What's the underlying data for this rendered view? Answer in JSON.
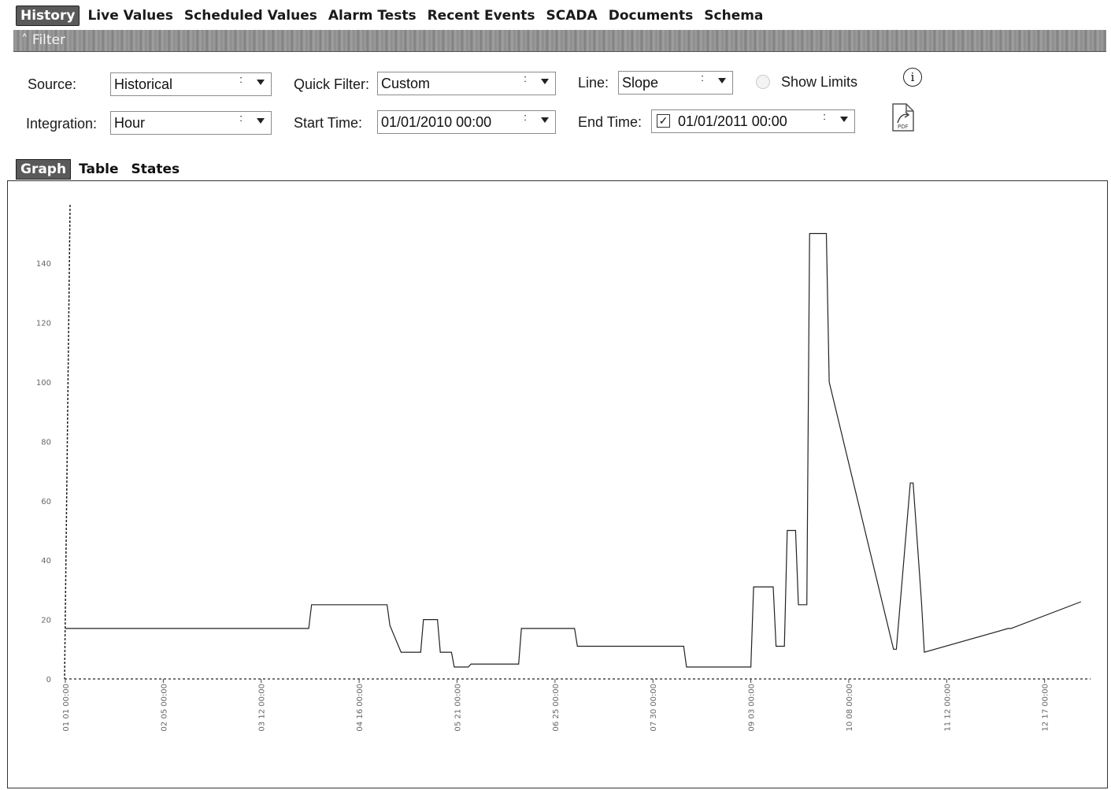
{
  "tabs": [
    "History",
    "Live Values",
    "Scheduled Values",
    "Alarm Tests",
    "Recent Events",
    "SCADA",
    "Documents",
    "Schema"
  ],
  "filter_bar": {
    "title": "Filter",
    "toggle_glyph": "≈"
  },
  "form": {
    "source_label": "Source:",
    "source_value": "Historical",
    "quick_filter_label": "Quick Filter:",
    "quick_filter_value": "Custom",
    "line_label": "Line:",
    "line_value": "Slope",
    "show_limits_label": "Show Limits",
    "integration_label": "Integration:",
    "integration_value": "Hour",
    "start_time_label": "Start Time:",
    "start_time_value": "01/01/2010 00:00",
    "end_time_label": "End Time:",
    "end_time_value": "01/01/2011 00:00",
    "end_time_checked": "✓",
    "info_glyph": "i"
  },
  "icons": {
    "info": "info-icon",
    "export": "export-icon",
    "spinner": "spinner-icon",
    "dropdown": "chevron-down-icon"
  },
  "subtabs": [
    "Graph",
    "Table",
    "States"
  ],
  "chart_data": {
    "type": "line",
    "step": true,
    "ylim": [
      0,
      150
    ],
    "yticks": [
      0,
      20,
      40,
      60,
      80,
      100,
      120,
      140
    ],
    "xticks": [
      "01 01 00:00",
      "02 05 00:00",
      "03 12 00:00",
      "04 16 00:00",
      "05 21 00:00",
      "06 25 00:00",
      "07 30 00:00",
      "09 03 00:00",
      "10 08 00:00",
      "11 12 00:00",
      "12 17 00:00"
    ],
    "x_day_range": [
      0,
      365
    ],
    "series": [
      {
        "color": "#222222",
        "x": [
          0,
          87,
          88,
          91,
          115,
          116,
          120,
          127,
          128,
          133,
          134,
          138,
          139,
          144,
          145,
          162,
          163,
          182,
          183,
          221,
          222,
          245,
          246,
          253,
          254,
          257,
          258,
          261,
          262,
          265,
          266,
          272,
          273,
          296,
          297,
          302,
          303,
          306,
          307,
          337,
          338,
          363
        ],
        "y": [
          17,
          17,
          25,
          25,
          25,
          18,
          9,
          9,
          20,
          20,
          9,
          9,
          4,
          4,
          5,
          5,
          17,
          17,
          11,
          11,
          4,
          4,
          31,
          31,
          11,
          11,
          50,
          50,
          25,
          25,
          150,
          150,
          100,
          10,
          10,
          66,
          66,
          26,
          9,
          17,
          17,
          26
        ]
      }
    ]
  }
}
